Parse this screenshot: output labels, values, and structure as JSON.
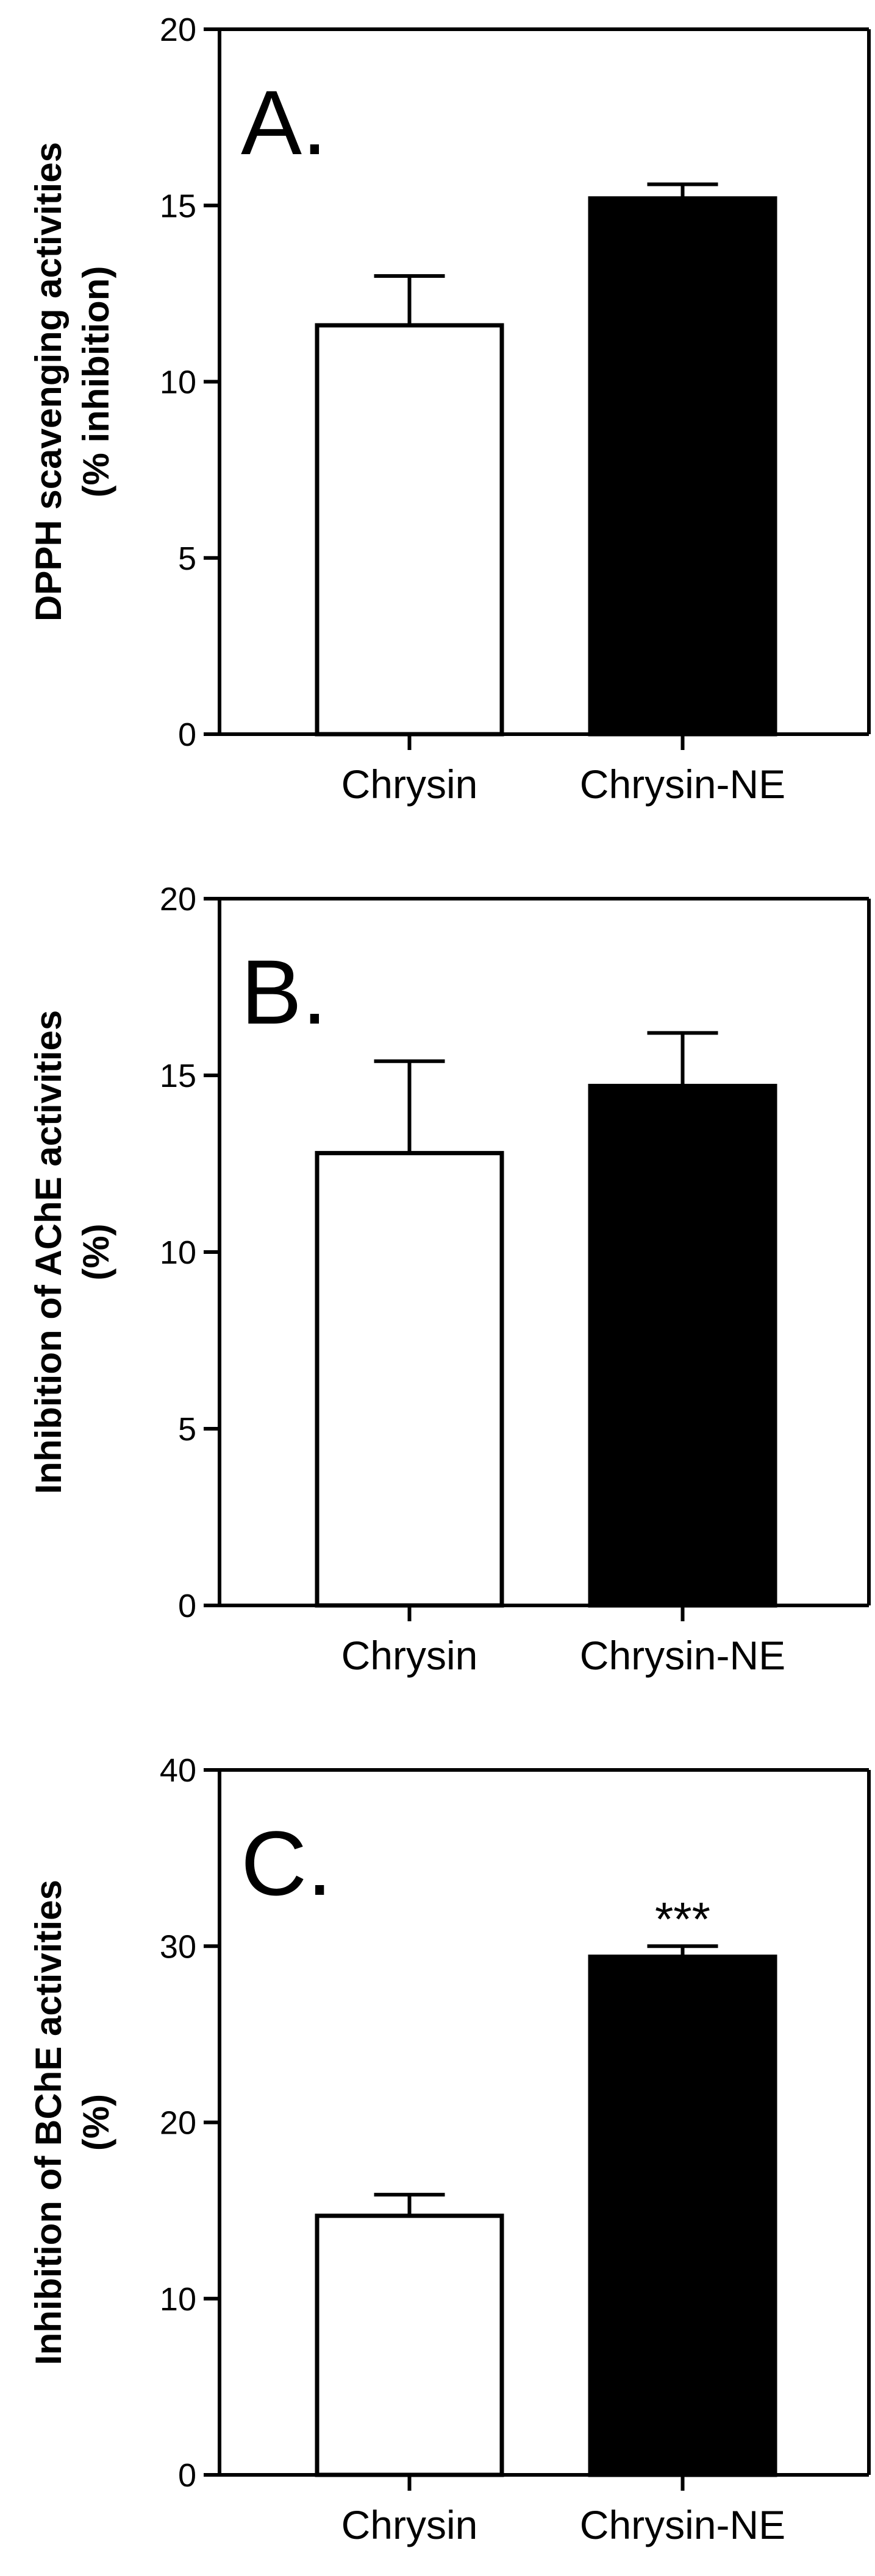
{
  "chart_data": [
    {
      "type": "bar",
      "panel_label": "A.",
      "categories": [
        "Chrysin",
        "Chrysin-NE"
      ],
      "values": [
        11.6,
        15.2
      ],
      "errors": [
        1.4,
        0.4
      ],
      "bar_colors": [
        "#ffffff",
        "#000000"
      ],
      "ylabel": [
        "DPPH scavenging activities",
        "(% inhibition)"
      ],
      "ylim": [
        0,
        20
      ],
      "yticks": [
        0,
        5,
        10,
        15,
        20
      ],
      "annotations": [
        "",
        ""
      ]
    },
    {
      "type": "bar",
      "panel_label": "B.",
      "categories": [
        "Chrysin",
        "Chrysin-NE"
      ],
      "values": [
        12.8,
        14.7
      ],
      "errors": [
        2.6,
        1.5
      ],
      "bar_colors": [
        "#ffffff",
        "#000000"
      ],
      "ylabel": [
        "Inhibition of AChE activities",
        "(%)"
      ],
      "ylim": [
        0,
        20
      ],
      "yticks": [
        0,
        5,
        10,
        15,
        20
      ],
      "annotations": [
        "",
        ""
      ]
    },
    {
      "type": "bar",
      "panel_label": "C.",
      "categories": [
        "Chrysin",
        "Chrysin-NE"
      ],
      "values": [
        14.7,
        29.4
      ],
      "errors": [
        1.2,
        0.6
      ],
      "bar_colors": [
        "#ffffff",
        "#000000"
      ],
      "ylabel": [
        "Inhibition of BChE activities",
        "(%)"
      ],
      "ylim": [
        0,
        40
      ],
      "yticks": [
        0,
        10,
        20,
        30,
        40
      ],
      "annotations": [
        "",
        "***"
      ]
    }
  ]
}
